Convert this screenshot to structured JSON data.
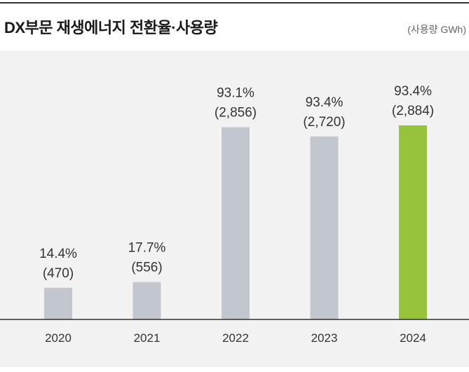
{
  "header": {
    "title": "DX부문 재생에너지 전환율·사용량",
    "unit": "(사용량 GWh)"
  },
  "chart_data": {
    "type": "bar",
    "title": "DX부문 재생에너지 전환율·사용량",
    "unit_label": "(사용량 GWh)",
    "categories": [
      "2020",
      "2021",
      "2022",
      "2023",
      "2024"
    ],
    "series": [
      {
        "name": "사용량 (GWh)",
        "values": [
          470,
          556,
          2856,
          2720,
          2884
        ]
      },
      {
        "name": "전환율 (%)",
        "values": [
          14.4,
          17.7,
          93.1,
          93.4,
          93.4
        ]
      }
    ],
    "rate_labels": [
      "14.4%",
      "17.7%",
      "93.1%",
      "93.4%",
      "93.4%"
    ],
    "usage_labels": [
      "(470)",
      "(556)",
      "(2,856)",
      "(2,720)",
      "(2,884)"
    ],
    "highlight_index": 4,
    "colors": {
      "bar": "#c1c7cc",
      "highlight": "#97c23c",
      "panel": "#f2f2f2",
      "axis": "#333333",
      "text": "#333333"
    },
    "grid": false,
    "legend": "none"
  }
}
